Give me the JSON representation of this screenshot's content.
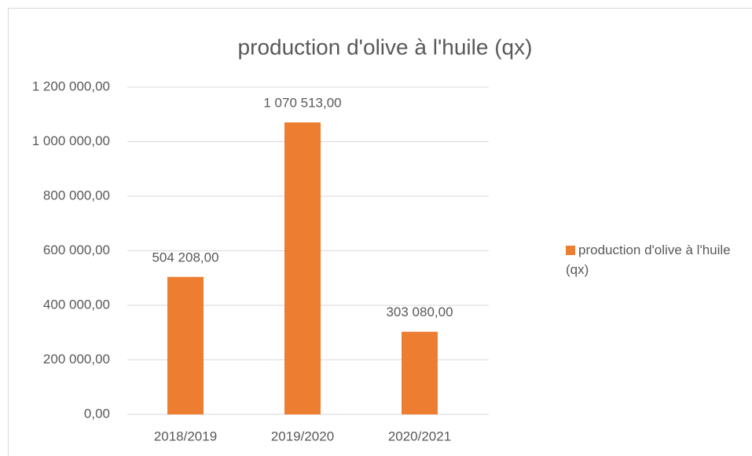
{
  "chart_data": {
    "type": "bar",
    "title": "production d'olive à l'huile (qx)",
    "categories": [
      "2018/2019",
      "2019/2020",
      "2020/2021"
    ],
    "series": [
      {
        "name": "production d'olive à l'huile (qx)",
        "color": "#ed7d31",
        "values": [
          504208,
          1070513,
          303080
        ],
        "value_labels": [
          "504 208,00",
          "1 070 513,00",
          "303 080,00"
        ]
      }
    ],
    "ylim": [
      0,
      1200000
    ],
    "yticks": [
      {
        "value": 0,
        "label": "0,00"
      },
      {
        "value": 200000,
        "label": "200 000,00"
      },
      {
        "value": 400000,
        "label": "400 000,00"
      },
      {
        "value": 600000,
        "label": "600 000,00"
      },
      {
        "value": 800000,
        "label": "800 000,00"
      },
      {
        "value": 1000000,
        "label": "1 000 000,00"
      },
      {
        "value": 1200000,
        "label": "1 200 000,00"
      }
    ],
    "grid": true,
    "legend": "right"
  }
}
